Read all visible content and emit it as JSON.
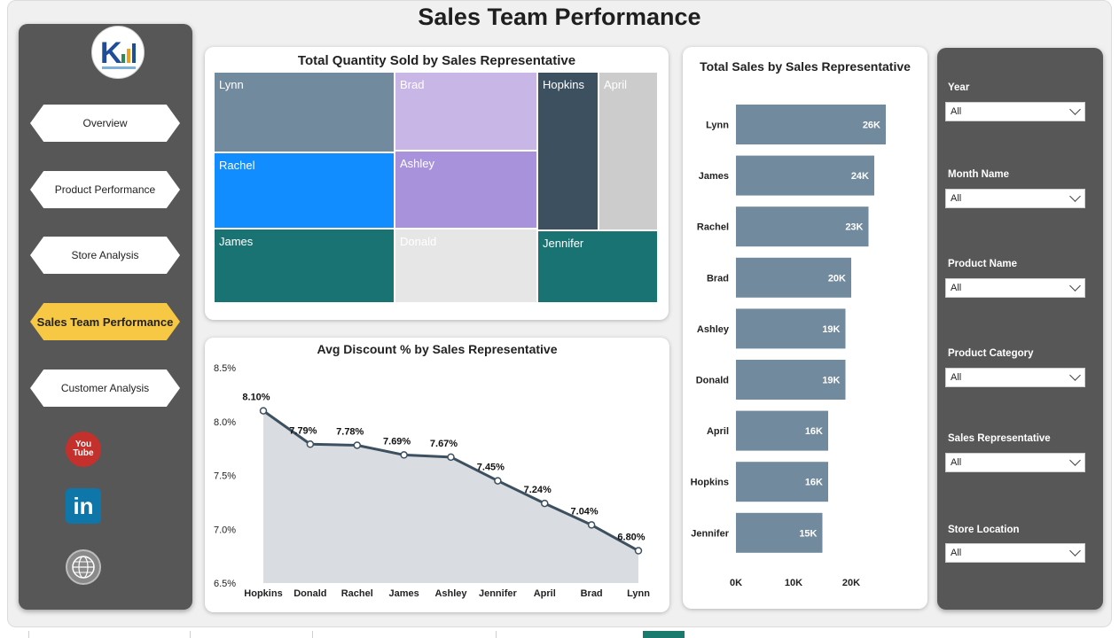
{
  "page_title": "Sales Team Performance",
  "nav": [
    {
      "label": "Overview",
      "active": false
    },
    {
      "label": "Product Performance",
      "active": false
    },
    {
      "label": "Store Analysis",
      "active": false
    },
    {
      "label": "Sales Team Performance",
      "active": true
    },
    {
      "label": "Customer Analysis",
      "active": false
    }
  ],
  "social": {
    "youtube_line1": "You",
    "youtube_line2": "Tube",
    "linkedin": "in"
  },
  "treemap": {
    "title": "Total Quantity Sold by Sales Representative",
    "cells": [
      {
        "name": "Lynn",
        "color": "#728a9d"
      },
      {
        "name": "Brad",
        "color": "#c7b6e6"
      },
      {
        "name": "Rachel",
        "color": "#118dff"
      },
      {
        "name": "Ashley",
        "color": "#a992dc"
      },
      {
        "name": "James",
        "color": "#1a7373"
      },
      {
        "name": "Donald",
        "color": "#e6e6e6"
      },
      {
        "name": "Hopkins",
        "color": "#3d5060"
      },
      {
        "name": "April",
        "color": "#cccccc"
      },
      {
        "name": "Jennifer",
        "color": "#1a7373"
      }
    ]
  },
  "chart_data": [
    {
      "type": "area",
      "title": "Avg Discount % by Sales Representative",
      "categories": [
        "Hopkins",
        "Donald",
        "Rachel",
        "James",
        "Ashley",
        "Jennifer",
        "April",
        "Brad",
        "Lynn"
      ],
      "values": [
        8.1,
        7.79,
        7.78,
        7.69,
        7.67,
        7.45,
        7.24,
        7.04,
        6.8
      ],
      "data_labels": [
        "8.10%",
        "7.79%",
        "7.78%",
        "7.69%",
        "7.67%",
        "7.45%",
        "7.24%",
        "7.04%",
        "6.80%"
      ],
      "y_ticks": [
        "8.5%",
        "8.0%",
        "7.5%",
        "7.0%",
        "6.5%"
      ],
      "ylim": [
        6.5,
        8.5
      ],
      "line_color": "#3d5060",
      "fill_color": "#d9dde1",
      "grid": false
    },
    {
      "type": "bar",
      "orientation": "horizontal",
      "title": "Total Sales by Sales Representative",
      "categories": [
        "Lynn",
        "James",
        "Rachel",
        "Brad",
        "Ashley",
        "Donald",
        "April",
        "Hopkins",
        "Jennifer"
      ],
      "values": [
        26,
        24,
        23,
        20,
        19,
        19,
        16,
        16,
        15
      ],
      "data_labels": [
        "26K",
        "24K",
        "23K",
        "20K",
        "19K",
        "19K",
        "16K",
        "16K",
        "15K"
      ],
      "x_ticks": [
        "0K",
        "10K",
        "20K"
      ],
      "xlim": [
        0,
        30
      ],
      "bar_color": "#728a9d",
      "grid": false
    }
  ],
  "slicers": [
    {
      "label": "Year",
      "value": "All"
    },
    {
      "label": "Month Name",
      "value": "All"
    },
    {
      "label": "Product Name",
      "value": "All"
    },
    {
      "label": "Product Category",
      "value": "All"
    },
    {
      "label": "Sales Representative",
      "value": "All"
    },
    {
      "label": "Store Location",
      "value": "All"
    }
  ]
}
